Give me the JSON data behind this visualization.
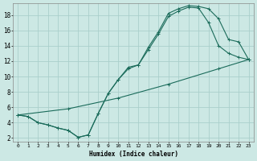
{
  "xlabel": "Humidex (Indice chaleur)",
  "bg_color": "#cce8e4",
  "grid_color": "#aacfcb",
  "line_color": "#1a6b5a",
  "xlim": [
    -0.5,
    23.5
  ],
  "ylim": [
    1.5,
    19.5
  ],
  "xticks": [
    0,
    1,
    2,
    3,
    4,
    5,
    6,
    7,
    8,
    9,
    10,
    11,
    12,
    13,
    14,
    15,
    16,
    17,
    18,
    19,
    20,
    21,
    22,
    23
  ],
  "yticks": [
    2,
    4,
    6,
    8,
    10,
    12,
    14,
    16,
    18
  ],
  "line1_x": [
    0,
    1,
    2,
    3,
    4,
    5,
    6,
    7,
    8,
    9,
    10,
    11,
    12,
    13,
    14,
    15,
    16,
    17,
    18,
    19,
    20,
    21,
    22,
    23
  ],
  "line1_y": [
    5.0,
    4.8,
    4.0,
    3.7,
    3.3,
    3.0,
    2.1,
    2.4,
    5.2,
    7.8,
    9.6,
    11.2,
    11.5,
    13.8,
    15.8,
    18.2,
    18.8,
    19.2,
    19.1,
    18.8,
    17.5,
    14.8,
    14.5,
    12.2
  ],
  "line2_x": [
    0,
    1,
    2,
    3,
    4,
    5,
    6,
    7,
    8,
    9,
    10,
    11,
    12,
    13,
    14,
    15,
    16,
    17,
    18,
    19,
    20,
    21,
    22,
    23
  ],
  "line2_y": [
    5.0,
    4.8,
    4.0,
    3.7,
    3.3,
    3.0,
    2.1,
    2.4,
    5.2,
    7.8,
    9.6,
    11.0,
    11.5,
    13.5,
    15.5,
    17.8,
    18.5,
    19.0,
    18.9,
    17.0,
    14.0,
    13.0,
    12.5,
    12.2
  ],
  "line3_x": [
    0,
    5,
    10,
    15,
    20,
    23
  ],
  "line3_y": [
    5.0,
    5.8,
    7.2,
    9.0,
    11.0,
    12.2
  ]
}
